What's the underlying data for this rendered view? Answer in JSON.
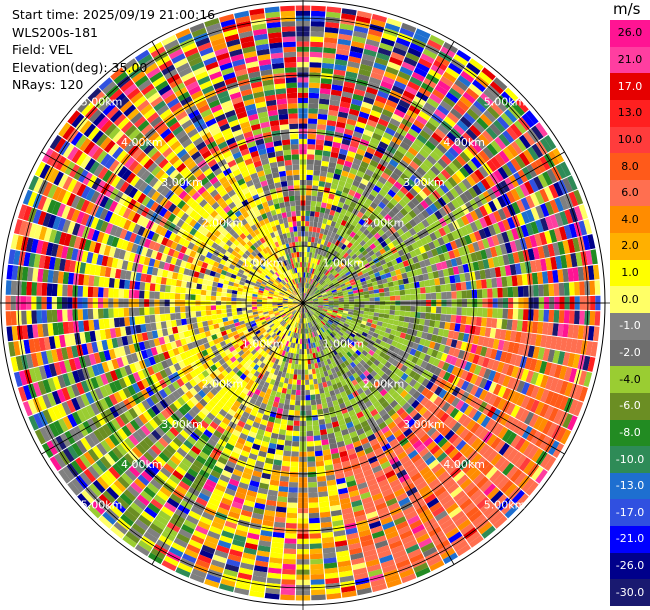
{
  "header": {
    "start_time": "Start time: 2025/09/19 21:00:16",
    "instrument": "WLS200s-181",
    "field": "Field: VEL",
    "elevation": "Elevation(deg): 35.00",
    "nrays": "NRays: 120"
  },
  "colorbar": {
    "unit": "m/s",
    "labels": [
      "26.0",
      "21.0",
      "17.0",
      "13.0",
      "10.0",
      "8.0",
      "6.0",
      "4.0",
      "2.0",
      "1.0",
      "0.0",
      "-1.0",
      "-2.0",
      "-4.0",
      "-6.0",
      "-8.0",
      "-10.0",
      "-13.0",
      "-17.0",
      "-21.0",
      "-26.0",
      "-30.0"
    ],
    "colors": [
      "#ff1493",
      "#ff3ea0",
      "#e60000",
      "#ff2020",
      "#ff3c3c",
      "#ff5a1a",
      "#ff6f50",
      "#ff8c00",
      "#ffb000",
      "#ffff00",
      "#ffff66",
      "#808080",
      "#6e6e6e",
      "#9acd32",
      "#6b8e23",
      "#228b22",
      "#2e8b57",
      "#1e6fd0",
      "#3050e0",
      "#0000ff",
      "#00008b",
      "#191970"
    ]
  },
  "chart_data": {
    "type": "ppi",
    "field": "VEL",
    "elevation_deg": 35.0,
    "nrays": 120,
    "range_rings_km": [
      1.0,
      2.0,
      3.0,
      4.0,
      5.0
    ],
    "ring_labels": [
      "1.00km",
      "2.00km",
      "3.00km",
      "4.00km",
      "5.00km"
    ],
    "spokes_deg": [
      0,
      30,
      60,
      90,
      120,
      150,
      180,
      210,
      240,
      270,
      300,
      330
    ],
    "velocity_range_ms": [
      -30.0,
      26.0
    ],
    "notes_regions": [
      {
        "sector": "west",
        "dominant": "positive 2-4 m/s (yellow)"
      },
      {
        "sector": "east",
        "dominant": "negative -1 to -4 m/s (green)"
      },
      {
        "sector": "south-east far",
        "dominant": "positive 8-10 m/s (salmon/orange)"
      },
      {
        "sector": "outer rings",
        "dominant": "mixed noise"
      }
    ]
  }
}
